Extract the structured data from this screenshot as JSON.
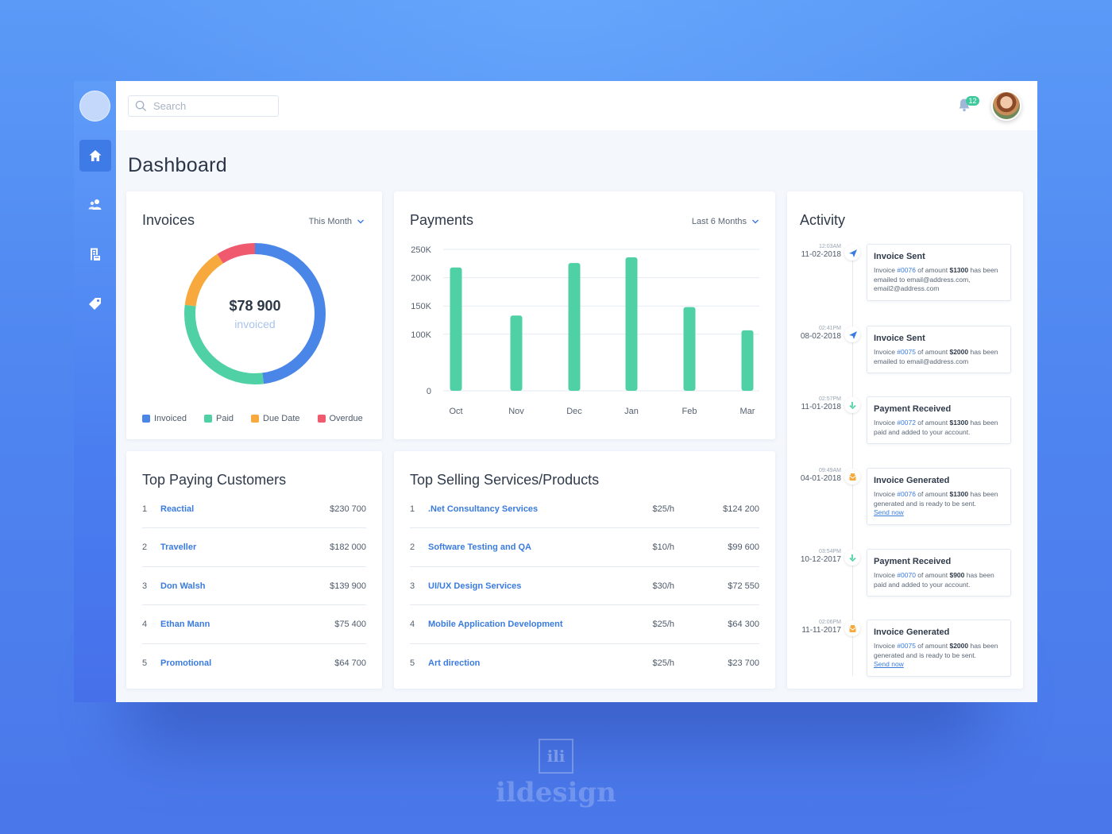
{
  "topbar": {
    "search_placeholder": "Search",
    "notification_count": "12"
  },
  "page": {
    "title": "Dashboard"
  },
  "sidebar": {
    "items": [
      {
        "icon": "home-icon",
        "active": true
      },
      {
        "icon": "users-icon",
        "active": false
      },
      {
        "icon": "invoice-icon",
        "active": false
      },
      {
        "icon": "tag-icon",
        "active": false
      }
    ]
  },
  "invoices": {
    "title": "Invoices",
    "filter": "This Month",
    "amount": "$78 900",
    "amount_label": "invoiced",
    "legend": [
      {
        "label": "Invoiced",
        "color": "#4a86e8"
      },
      {
        "label": "Paid",
        "color": "#4fd1a5"
      },
      {
        "label": "Due Date",
        "color": "#f8a93e"
      },
      {
        "label": "Overdue",
        "color": "#ef5a6f"
      }
    ],
    "segments": [
      {
        "label": "Invoiced",
        "fraction": 0.48,
        "color": "#4a86e8"
      },
      {
        "label": "Paid",
        "fraction": 0.29,
        "color": "#4fd1a5"
      },
      {
        "label": "Due Date",
        "fraction": 0.14,
        "color": "#f8a93e"
      },
      {
        "label": "Overdue",
        "fraction": 0.09,
        "color": "#ef5a6f"
      }
    ]
  },
  "payments": {
    "title": "Payments",
    "filter": "Last 6 Months",
    "bar_color": "#4fd1a5"
  },
  "chart_data": {
    "type": "bar",
    "title": "Payments",
    "categories": [
      "Oct",
      "Nov",
      "Dec",
      "Jan",
      "Feb",
      "Mar"
    ],
    "values": [
      218000,
      133000,
      226000,
      236000,
      148000,
      107000
    ],
    "yticks": [
      "250K",
      "200K",
      "150K",
      "100K",
      "0"
    ],
    "ytick_values": [
      250000,
      200000,
      150000,
      100000,
      0
    ],
    "ylim": [
      0,
      250000
    ],
    "grid": true
  },
  "customers": {
    "title": "Top Paying Customers",
    "rows": [
      {
        "num": "1",
        "name": "Reactial",
        "amount": "$230 700"
      },
      {
        "num": "2",
        "name": "Traveller",
        "amount": "$182 000"
      },
      {
        "num": "3",
        "name": "Don Walsh",
        "amount": "$139 900"
      },
      {
        "num": "4",
        "name": "Ethan Mann",
        "amount": "$75 400"
      },
      {
        "num": "5",
        "name": "Promotional",
        "amount": "$64 700"
      }
    ]
  },
  "services": {
    "title": "Top Selling Services/Products",
    "rows": [
      {
        "num": "1",
        "name": ".Net Consultancy Services",
        "rate": "$25/h",
        "amount": "$124 200"
      },
      {
        "num": "2",
        "name": "Software Testing and QA",
        "rate": "$10/h",
        "amount": "$99 600"
      },
      {
        "num": "3",
        "name": "UI/UX Design Services",
        "rate": "$30/h",
        "amount": "$72 550"
      },
      {
        "num": "4",
        "name": "Mobile Application Development",
        "rate": "$25/h",
        "amount": "$64 300"
      },
      {
        "num": "5",
        "name": "Art direction",
        "rate": "$25/h",
        "amount": "$23 700"
      }
    ]
  },
  "activity": {
    "title": "Activity",
    "items": [
      {
        "time": "12:03AM",
        "date": "11-02-2018",
        "icon": "send-icon",
        "icon_color": "#3a7bdf",
        "title": "Invoice Sent",
        "pre": "Invoice ",
        "invoice": "#0076",
        "mid": " of amount ",
        "amount": "$1300",
        "post": " has been emailed to email@address.com, email2@address.com",
        "link": ""
      },
      {
        "time": "02:41PM",
        "date": "08-02-2018",
        "icon": "send-icon",
        "icon_color": "#3a7bdf",
        "title": "Invoice Sent",
        "pre": "Invoice ",
        "invoice": "#0075",
        "mid": " of amount ",
        "amount": "$2000",
        "post": " has been emailed to email@address.com",
        "link": ""
      },
      {
        "time": "02:57PM",
        "date": "11-01-2018",
        "icon": "download-icon",
        "icon_color": "#4fd1a5",
        "title": "Payment Received",
        "pre": "Invoice ",
        "invoice": "#0072",
        "mid": " of amount ",
        "amount": "$1300",
        "post": " has been paid and added to your account.",
        "link": ""
      },
      {
        "time": "09:49AM",
        "date": "04-01-2018",
        "icon": "document-icon",
        "icon_color": "#f8a93e",
        "title": "Invoice Generated",
        "pre": "Invoice ",
        "invoice": "#0076",
        "mid": " of amount ",
        "amount": "$1300",
        "post": " has been generated and is ready to be sent.",
        "link": "Send now"
      },
      {
        "time": "03:54PM",
        "date": "10-12-2017",
        "icon": "download-icon",
        "icon_color": "#4fd1a5",
        "title": "Payment Received",
        "pre": "Invoice ",
        "invoice": "#0070",
        "mid": " of amount ",
        "amount": "$900",
        "post": " has been paid and added to your account.",
        "link": ""
      },
      {
        "time": "02:06PM",
        "date": "11-11-2017",
        "icon": "document-icon",
        "icon_color": "#f8a93e",
        "title": "Invoice Generated",
        "pre": "Invoice ",
        "invoice": "#0075",
        "mid": " of amount ",
        "amount": "$2000",
        "post": " has been generated and is ready to be sent.",
        "link": "Send now"
      }
    ]
  },
  "watermark": {
    "logo": "ili",
    "text": "ildesign"
  }
}
